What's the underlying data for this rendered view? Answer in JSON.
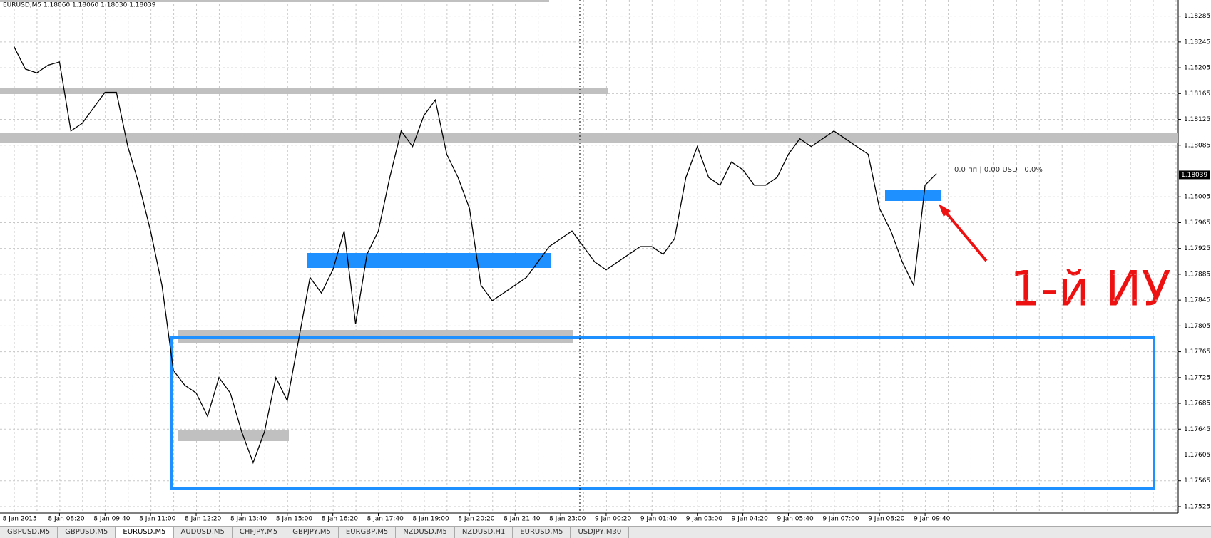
{
  "chart_data": {
    "type": "line",
    "title": "EURUSD,M5  1.18060 1.18060 1.18030 1.18039",
    "categories": [
      "8 Jan 2015",
      null,
      null,
      null,
      "8 Jan 08:20",
      null,
      null,
      null,
      "8 Jan 09:40",
      null,
      null,
      null,
      "8 Jan 11:00",
      null,
      null,
      null,
      "8 Jan 12:20",
      null,
      null,
      null,
      "8 Jan 13:40",
      null,
      null,
      null,
      "8 Jan 15:00",
      null,
      null,
      null,
      "8 Jan 16:20",
      null,
      null,
      null,
      "8 Jan 17:40",
      null,
      null,
      null,
      "8 Jan 19:00",
      null,
      null,
      null,
      "8 Jan 20:20",
      null,
      null,
      null,
      "8 Jan 21:40",
      null,
      null,
      null,
      "8 Jan 23:00",
      null,
      null,
      null,
      "9 Jan 00:20",
      null,
      null,
      null,
      "9 Jan 01:40",
      null,
      null,
      null,
      "9 Jan 03:00",
      null,
      null,
      null,
      "9 Jan 04:20",
      null,
      null,
      null,
      "9 Jan 05:40",
      null,
      null,
      null,
      "9 Jan 07:00",
      null,
      null,
      null,
      "9 Jan 08:20",
      null,
      null,
      null,
      "9 Jan 09:40",
      null
    ],
    "series": [
      {
        "name": "EURUSD,M5",
        "color": "#000000",
        "values": [
          1.18238,
          1.18203,
          1.18197,
          1.18209,
          1.18214,
          1.18107,
          1.18119,
          1.18143,
          1.18167,
          1.18167,
          1.18083,
          1.18023,
          1.17952,
          1.17868,
          1.17736,
          1.17713,
          1.17701,
          1.17665,
          1.17725,
          1.17701,
          1.17641,
          1.17593,
          1.17641,
          1.17725,
          1.17689,
          1.17784,
          1.1788,
          1.17856,
          1.17892,
          1.17952,
          1.17808,
          1.17916,
          1.17952,
          1.18035,
          1.18107,
          1.18083,
          1.18131,
          1.18155,
          1.18071,
          1.18035,
          1.17987,
          1.17868,
          1.17844,
          1.17856,
          1.17868,
          1.1788,
          1.17904,
          1.17928,
          1.1794,
          1.17952,
          1.17928,
          1.17904,
          1.17892,
          1.17904,
          1.17916,
          1.17928,
          1.17928,
          1.17916,
          1.1794,
          1.18035,
          1.18083,
          1.18035,
          1.18023,
          1.18059,
          1.18047,
          1.18023,
          1.18023,
          1.18035,
          1.18071,
          1.18095,
          1.18083,
          1.18095,
          1.18107,
          1.18095,
          1.18083,
          1.18071,
          1.17987,
          1.17952,
          1.17904,
          1.17868,
          1.18023,
          1.18041
        ]
      }
    ],
    "ylim": [
      1.17515,
      1.1831
    ],
    "yticks": [
      1.17525,
      1.17565,
      1.17605,
      1.17645,
      1.17685,
      1.17725,
      1.17765,
      1.17805,
      1.17845,
      1.17885,
      1.17925,
      1.17965,
      1.18005,
      1.18085,
      1.18125,
      1.18165,
      1.18205,
      1.18245,
      1.18285
    ],
    "grid": true,
    "current_price": "1.18039",
    "status_text": "0.0 пп | 0.00 USD | 0.0%",
    "annotation": "1-й ИУ"
  },
  "tabs": [
    "GBPUSD,M5",
    "GBPUSD,M5",
    "EURUSD,M5",
    "AUDUSD,M5",
    "CHFJPY,M5",
    "GBPJPY,M5",
    "EURGBP,M5",
    "NZDUSD,M5",
    "NZDUSD,H1",
    "EURUSD,M5",
    "USDJPY,M30"
  ]
}
